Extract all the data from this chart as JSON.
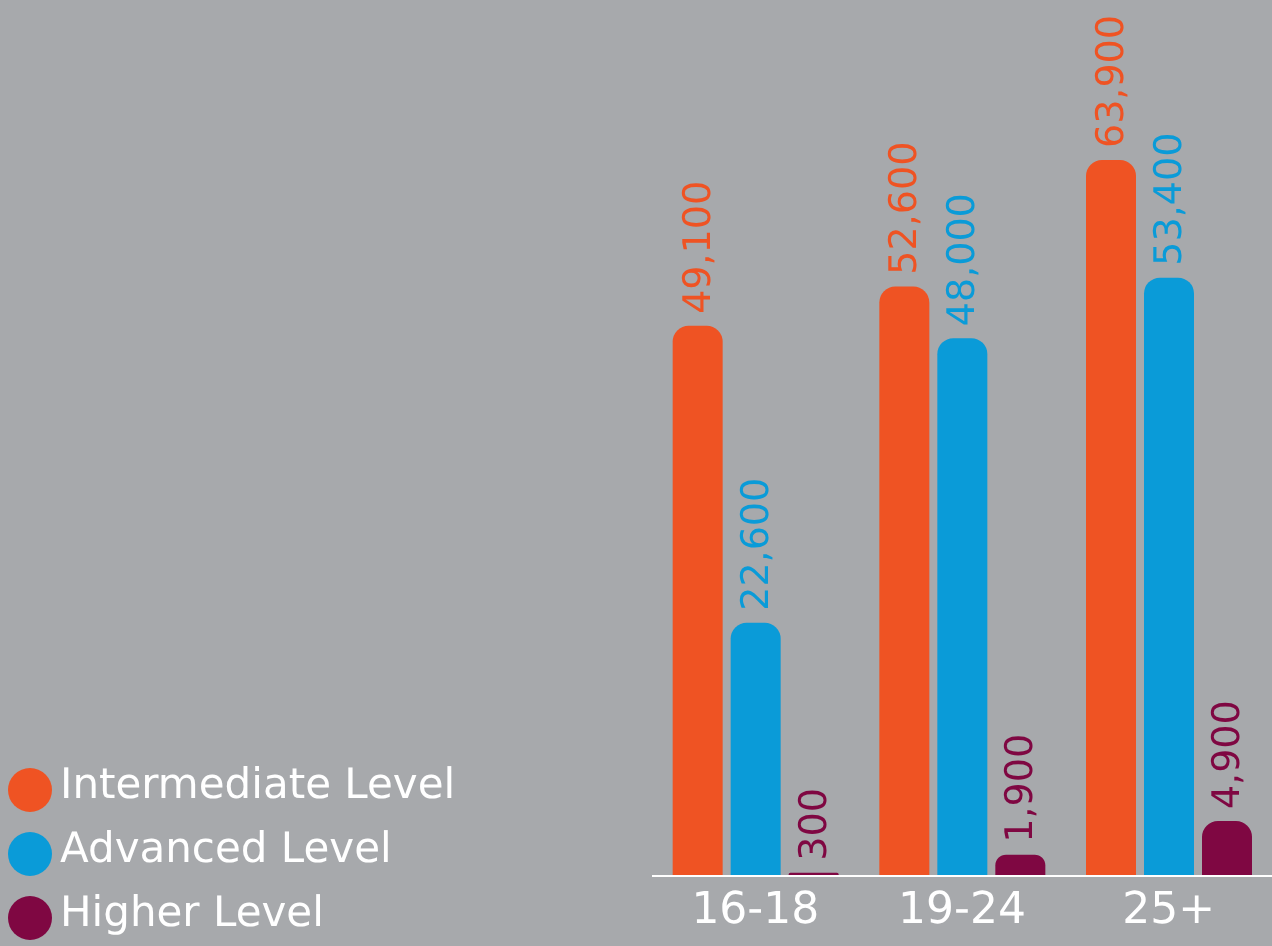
{
  "chart_data": {
    "type": "bar",
    "categories": [
      "16-18",
      "19-24",
      "25+"
    ],
    "series": [
      {
        "name": "Intermediate Level",
        "color": "#ef5323",
        "values": [
          49100,
          52600,
          63900
        ],
        "value_labels": [
          "49,100",
          "52,600",
          "63,900"
        ]
      },
      {
        "name": "Advanced Level",
        "color": "#0a9bd8",
        "values": [
          22600,
          48000,
          53400
        ],
        "value_labels": [
          "22,600",
          "48,000",
          "53,400"
        ]
      },
      {
        "name": "Higher Level",
        "color": "#7f0742",
        "values": [
          300,
          1900,
          4900
        ],
        "value_labels": [
          "300",
          "1,900",
          "4,900"
        ]
      }
    ],
    "legend": "bottom left",
    "grid": false
  }
}
